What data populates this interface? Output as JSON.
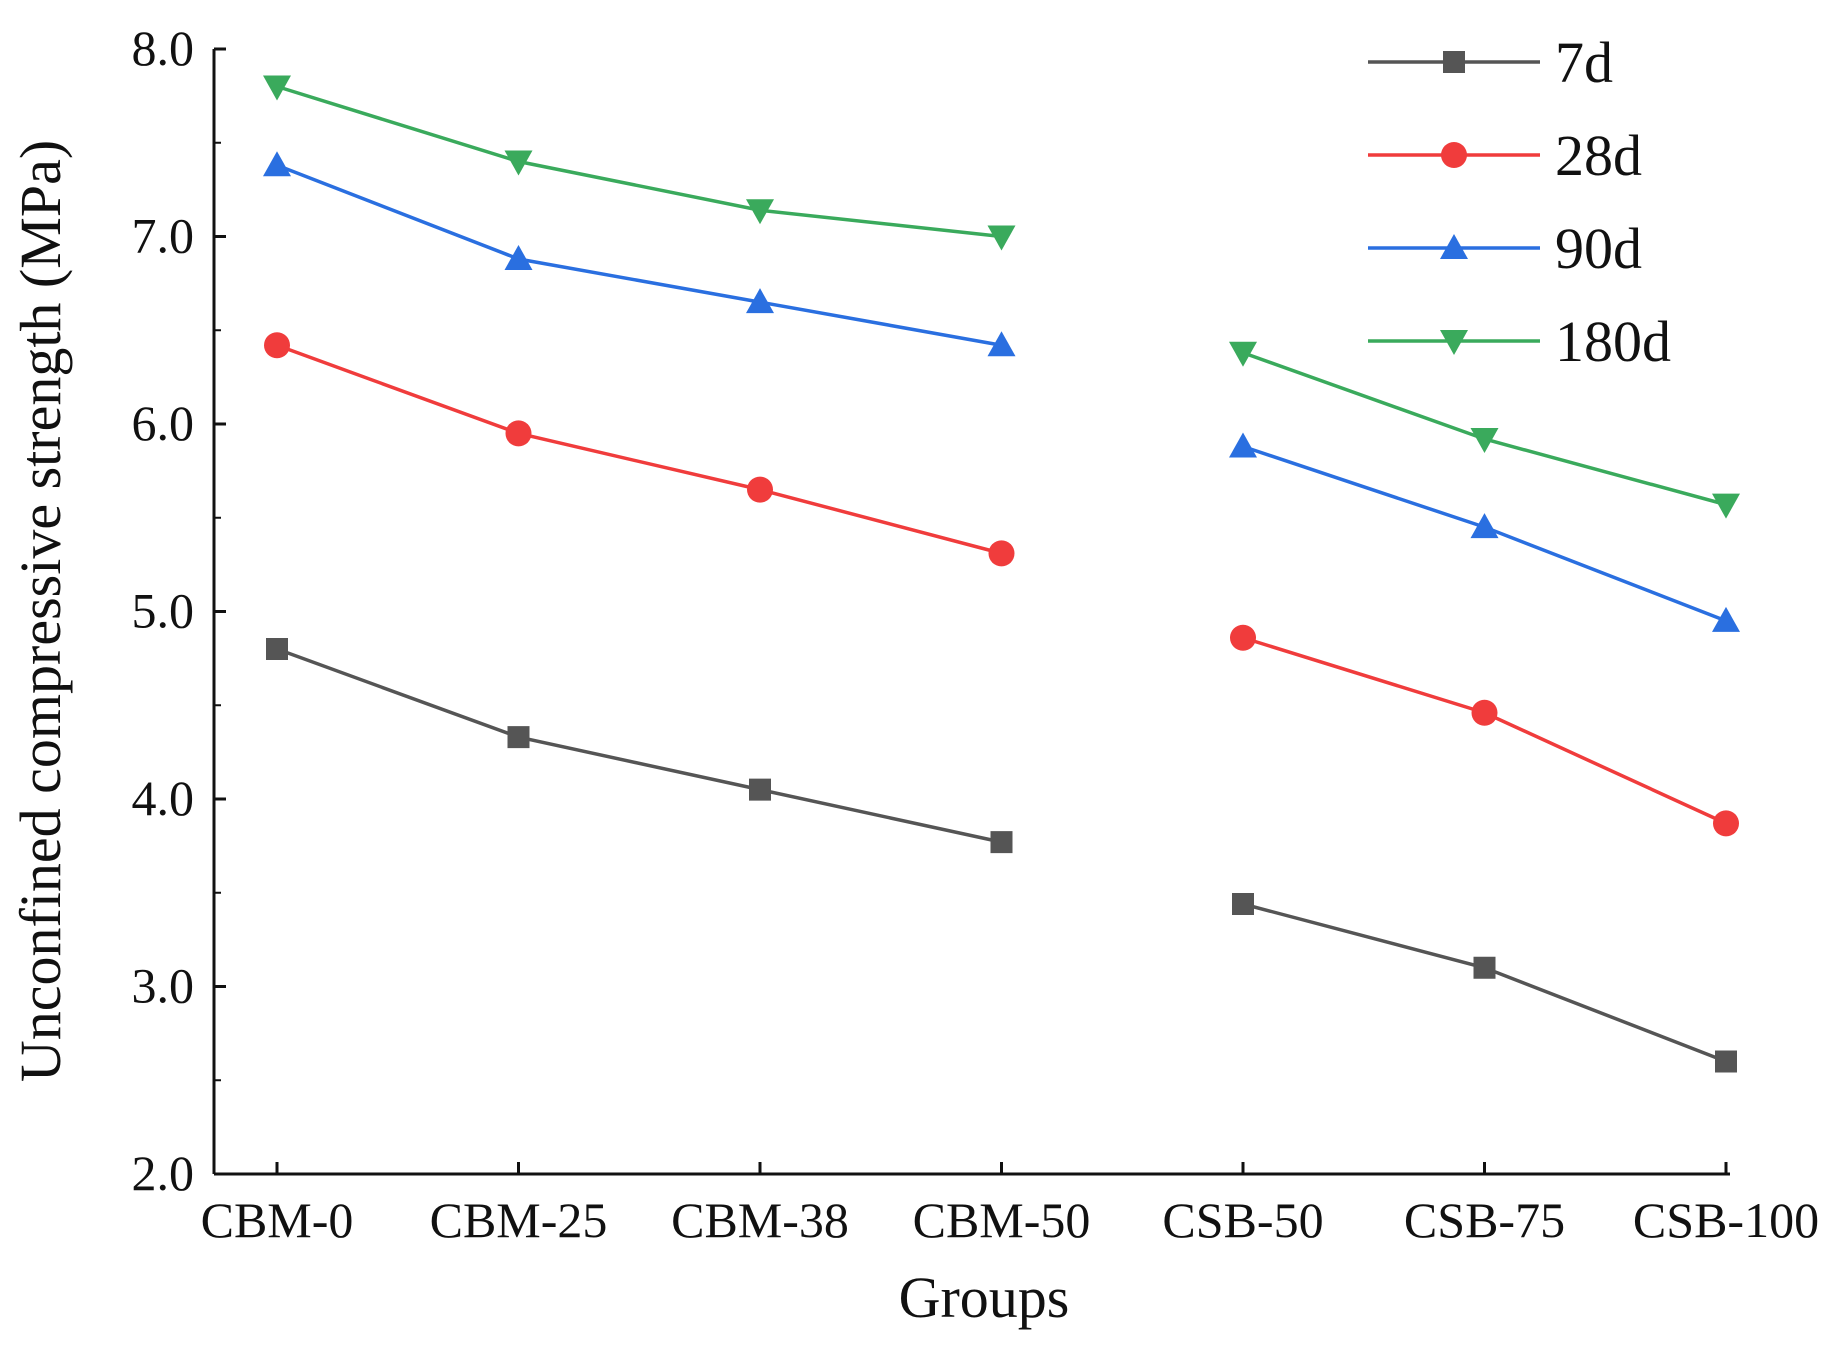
{
  "chart_data": {
    "type": "line",
    "xlabel": "Groups",
    "ylabel": "Unconfined compressive strength (MPa)",
    "categories": [
      "CBM-0",
      "CBM-25",
      "CBM-38",
      "CBM-50",
      "CSB-50",
      "CSB-75",
      "CSB-100"
    ],
    "ylim": [
      2.0,
      8.0
    ],
    "yticks": [
      "2.0",
      "3.0",
      "4.0",
      "5.0",
      "6.0",
      "7.0",
      "8.0"
    ],
    "grid": false,
    "legend_position": "top-right",
    "series": [
      {
        "name": "7d",
        "color": "#555555",
        "marker": "square",
        "values": [
          4.8,
          4.33,
          4.05,
          3.77,
          3.44,
          3.1,
          2.6
        ]
      },
      {
        "name": "28d",
        "color": "#f03c3c",
        "marker": "circle",
        "values": [
          6.42,
          5.95,
          5.65,
          5.31,
          4.86,
          4.46,
          3.87
        ]
      },
      {
        "name": "90d",
        "color": "#2a6fe0",
        "marker": "triangle-up",
        "values": [
          7.38,
          6.88,
          6.65,
          6.42,
          5.88,
          5.45,
          4.95
        ]
      },
      {
        "name": "180d",
        "color": "#3aaa5c",
        "marker": "triangle-down",
        "values": [
          7.8,
          7.4,
          7.14,
          7.0,
          6.38,
          5.92,
          5.57
        ]
      }
    ],
    "segments": [
      [
        0,
        3
      ],
      [
        4,
        6
      ]
    ]
  }
}
